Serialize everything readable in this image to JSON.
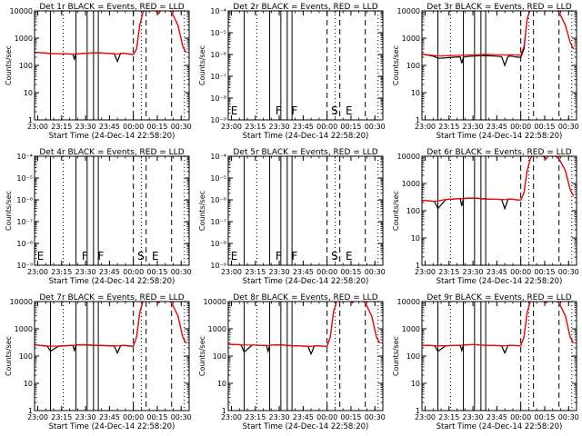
{
  "colors": {
    "events": "#000000",
    "lld": "#ff0000",
    "background": "#ffffff"
  },
  "common": {
    "xlabel": "Start Time (24-Dec-14 22:58:20)",
    "ylabel": "Counts/sec",
    "xticks": [
      "23:00",
      "23:15",
      "23:30",
      "23:45",
      "00:00",
      "00:15",
      "00:30"
    ],
    "xticks_minutes": [
      2,
      17,
      32,
      47,
      62,
      77,
      92
    ],
    "x_range_minutes": [
      0,
      97
    ],
    "x_unit": "minutes after 24-Dec-14 22:58:20",
    "solid_marker_lines_minutes": [
      10,
      26,
      33,
      37,
      40
    ],
    "dashed_marker_lines_minutes": [
      62,
      70,
      86
    ],
    "dotted_marker_lines_minutes": [
      18,
      67,
      94
    ],
    "flag_labels": [
      {
        "text": "E",
        "x": 1
      },
      {
        "text": "F",
        "x": 29
      },
      {
        "text": "F",
        "x": 39
      },
      {
        "text": "S",
        "x": 64
      },
      {
        "text": "E",
        "x": 73
      }
    ]
  },
  "chart_data": [
    {
      "type": "line",
      "panel": "Det 1r",
      "title": "Det 1r BLACK = Events, RED = LLD",
      "scale": "log",
      "ylim": [
        1,
        10000
      ],
      "yticks": [
        1,
        10,
        100,
        1000,
        10000
      ],
      "yticklabels": [
        "1",
        "10",
        "100",
        "1000",
        "10000"
      ],
      "flags_visible": false,
      "x": [
        0,
        5,
        8,
        10,
        15,
        20,
        24,
        25,
        26,
        28,
        33,
        36,
        40,
        45,
        50,
        52,
        54,
        56,
        58,
        60,
        62,
        64,
        66,
        68,
        70,
        74,
        76,
        78,
        80,
        82,
        84,
        86,
        90,
        93,
        95
      ],
      "series": [
        {
          "name": "Events",
          "color": "#000000",
          "values": [
            300,
            290,
            280,
            275,
            270,
            265,
            260,
            170,
            265,
            270,
            280,
            285,
            290,
            280,
            270,
            140,
            275,
            280,
            270,
            260,
            250,
            400,
            3000,
            9000,
            13000,
            12000,
            10000,
            8000,
            13000,
            12000,
            11000,
            9000,
            3000,
            500,
            300
          ]
        },
        {
          "name": "LLD",
          "color": "#ff0000",
          "values": [
            300,
            290,
            280,
            270,
            270,
            265,
            260,
            260,
            265,
            270,
            280,
            285,
            290,
            280,
            270,
            260,
            275,
            280,
            270,
            260,
            250,
            400,
            3000,
            9000,
            13000,
            12000,
            10000,
            8000,
            13000,
            12000,
            11000,
            9000,
            3000,
            500,
            300
          ]
        }
      ]
    },
    {
      "type": "line",
      "panel": "Det 2r",
      "title": "Det 2r BLACK = Events, RED = LLD",
      "scale": "log",
      "ylim": [
        1e-09,
        0.0001
      ],
      "yticks": [
        1e-09,
        1e-08,
        1e-07,
        1e-06,
        1e-05,
        0.0001
      ],
      "yticklabels": [
        "10⁻⁹",
        "10⁻⁸",
        "10⁻⁷",
        "10⁻⁶",
        "10⁻⁵",
        "10⁻⁴"
      ],
      "flags_visible": true,
      "x": [],
      "series": []
    },
    {
      "type": "line",
      "panel": "Det 3r",
      "title": "Det 3r BLACK = Events, RED = LLD",
      "scale": "log",
      "ylim": [
        1,
        10000
      ],
      "yticks": [
        1,
        10,
        100,
        1000,
        10000
      ],
      "yticklabels": [
        "1",
        "10",
        "100",
        "1000",
        "10000"
      ],
      "flags_visible": false,
      "x": [
        0,
        5,
        8,
        10,
        15,
        20,
        24,
        25,
        26,
        28,
        33,
        36,
        40,
        45,
        50,
        52,
        54,
        56,
        58,
        60,
        62,
        64,
        66,
        68,
        70,
        74,
        76,
        78,
        80,
        82,
        84,
        86,
        90,
        93,
        95
      ],
      "series": [
        {
          "name": "Events",
          "color": "#000000",
          "values": [
            260,
            230,
            210,
            180,
            190,
            200,
            205,
            120,
            200,
            210,
            220,
            225,
            230,
            220,
            210,
            100,
            215,
            220,
            210,
            200,
            200,
            400,
            5000,
            12000,
            14000,
            13000,
            12000,
            10000,
            13000,
            12000,
            11000,
            9000,
            3000,
            700,
            400
          ]
        },
        {
          "name": "LLD",
          "color": "#ff0000",
          "values": [
            260,
            240,
            230,
            220,
            225,
            230,
            235,
            235,
            235,
            240,
            245,
            250,
            255,
            250,
            245,
            240,
            245,
            250,
            245,
            240,
            240,
            500,
            5000,
            12000,
            14000,
            13000,
            12000,
            10000,
            13000,
            12000,
            11000,
            9000,
            3000,
            700,
            400
          ]
        }
      ]
    },
    {
      "type": "line",
      "panel": "Det 4r",
      "title": "Det 4r BLACK = Events, RED = LLD",
      "scale": "log",
      "ylim": [
        1e-09,
        0.0001
      ],
      "yticks": [
        1e-09,
        1e-08,
        1e-07,
        1e-06,
        1e-05,
        0.0001
      ],
      "yticklabels": [
        "10⁻⁹",
        "10⁻⁸",
        "10⁻⁷",
        "10⁻⁶",
        "10⁻⁵",
        "10⁻⁴"
      ],
      "flags_visible": true,
      "x": [],
      "series": []
    },
    {
      "type": "line",
      "panel": "Det 5r",
      "title": "Det 5r BLACK = Events, RED = LLD",
      "scale": "log",
      "ylim": [
        1e-09,
        0.0001
      ],
      "yticks": [
        1e-09,
        1e-08,
        1e-07,
        1e-06,
        1e-05,
        0.0001
      ],
      "yticklabels": [
        "10⁻⁹",
        "10⁻⁸",
        "10⁻⁷",
        "10⁻⁶",
        "10⁻⁵",
        "10⁻⁴"
      ],
      "flags_visible": true,
      "x": [],
      "series": []
    },
    {
      "type": "line",
      "panel": "Det 6r",
      "title": "Det 6r BLACK = Events, RED = LLD",
      "scale": "log",
      "ylim": [
        1,
        10000
      ],
      "yticks": [
        1,
        10,
        100,
        1000,
        10000
      ],
      "yticklabels": [
        "1",
        "10",
        "100",
        "1000",
        "10000"
      ],
      "flags_visible": false,
      "x": [
        0,
        5,
        8,
        10,
        15,
        20,
        24,
        25,
        26,
        28,
        33,
        36,
        40,
        45,
        50,
        52,
        54,
        56,
        58,
        60,
        62,
        64,
        66,
        68,
        70,
        74,
        76,
        78,
        80,
        82,
        84,
        86,
        90,
        93,
        95
      ],
      "series": [
        {
          "name": "Events",
          "color": "#000000",
          "values": [
            240,
            230,
            215,
            120,
            260,
            270,
            280,
            150,
            280,
            285,
            290,
            280,
            270,
            265,
            260,
            120,
            265,
            270,
            260,
            250,
            250,
            450,
            3000,
            8000,
            12000,
            11000,
            10000,
            8000,
            12000,
            11000,
            10000,
            8000,
            3000,
            600,
            350
          ]
        },
        {
          "name": "LLD",
          "color": "#ff0000",
          "values": [
            240,
            230,
            220,
            230,
            260,
            270,
            280,
            280,
            285,
            290,
            295,
            285,
            275,
            265,
            260,
            255,
            265,
            270,
            260,
            250,
            250,
            450,
            3000,
            8000,
            12000,
            11000,
            10000,
            8000,
            12000,
            11000,
            10000,
            8000,
            3000,
            600,
            350
          ]
        }
      ]
    },
    {
      "type": "line",
      "panel": "Det 7r",
      "title": "Det 7r BLACK = Events, RED = LLD",
      "scale": "log",
      "ylim": [
        1,
        10000
      ],
      "yticks": [
        1,
        10,
        100,
        1000,
        10000
      ],
      "yticklabels": [
        "1",
        "10",
        "100",
        "1000",
        "10000"
      ],
      "flags_visible": false,
      "x": [
        0,
        5,
        8,
        10,
        15,
        20,
        24,
        25,
        26,
        28,
        33,
        36,
        40,
        45,
        50,
        52,
        54,
        56,
        58,
        60,
        62,
        64,
        66,
        68,
        70,
        74,
        76,
        78,
        80,
        82,
        84,
        86,
        90,
        93,
        95
      ],
      "series": [
        {
          "name": "Events",
          "color": "#000000",
          "values": [
            260,
            240,
            230,
            150,
            230,
            240,
            250,
            160,
            250,
            255,
            260,
            250,
            245,
            240,
            235,
            130,
            240,
            245,
            240,
            230,
            230,
            500,
            4000,
            10000,
            13000,
            12000,
            11000,
            9000,
            13000,
            12000,
            11000,
            9000,
            3000,
            500,
            300
          ]
        },
        {
          "name": "LLD",
          "color": "#ff0000",
          "values": [
            260,
            245,
            235,
            230,
            235,
            245,
            250,
            250,
            255,
            260,
            265,
            255,
            250,
            245,
            240,
            235,
            245,
            250,
            245,
            235,
            235,
            500,
            4000,
            10000,
            13000,
            12000,
            11000,
            9000,
            13000,
            12000,
            11000,
            9000,
            3000,
            500,
            300
          ]
        }
      ]
    },
    {
      "type": "line",
      "panel": "Det 8r",
      "title": "Det 8r BLACK = Events, RED = LLD",
      "scale": "log",
      "ylim": [
        1,
        10000
      ],
      "yticks": [
        1,
        10,
        100,
        1000,
        10000
      ],
      "yticklabels": [
        "1",
        "10",
        "100",
        "1000",
        "10000"
      ],
      "flags_visible": false,
      "x": [
        0,
        5,
        8,
        10,
        15,
        20,
        24,
        25,
        26,
        28,
        33,
        36,
        40,
        45,
        50,
        52,
        54,
        56,
        58,
        60,
        62,
        64,
        66,
        68,
        70,
        74,
        76,
        78,
        80,
        82,
        84,
        86,
        90,
        93,
        95
      ],
      "series": [
        {
          "name": "Events",
          "color": "#000000",
          "values": [
            270,
            265,
            260,
            140,
            255,
            250,
            245,
            150,
            250,
            255,
            260,
            250,
            240,
            235,
            230,
            120,
            235,
            240,
            235,
            230,
            230,
            500,
            4000,
            10000,
            13000,
            12000,
            11000,
            9000,
            13000,
            12000,
            11000,
            9000,
            3000,
            500,
            300
          ]
        },
        {
          "name": "LLD",
          "color": "#ff0000",
          "values": [
            270,
            265,
            260,
            255,
            255,
            250,
            245,
            245,
            250,
            255,
            260,
            250,
            240,
            235,
            230,
            225,
            235,
            240,
            235,
            230,
            230,
            500,
            4000,
            10000,
            13000,
            12000,
            11000,
            9000,
            13000,
            12000,
            11000,
            9000,
            3000,
            500,
            300
          ]
        }
      ]
    },
    {
      "type": "line",
      "panel": "Det 9r",
      "title": "Det 9r BLACK = Events, RED = LLD",
      "scale": "log",
      "ylim": [
        1,
        10000
      ],
      "yticks": [
        1,
        10,
        100,
        1000,
        10000
      ],
      "yticklabels": [
        "1",
        "10",
        "100",
        "1000",
        "10000"
      ],
      "flags_visible": false,
      "x": [
        0,
        5,
        8,
        10,
        15,
        20,
        24,
        25,
        26,
        28,
        33,
        36,
        40,
        45,
        50,
        52,
        54,
        56,
        58,
        60,
        62,
        64,
        66,
        68,
        70,
        74,
        76,
        78,
        80,
        82,
        84,
        86,
        90,
        93,
        95
      ],
      "series": [
        {
          "name": "Events",
          "color": "#000000",
          "values": [
            250,
            245,
            240,
            150,
            240,
            245,
            250,
            160,
            255,
            260,
            265,
            255,
            250,
            245,
            240,
            130,
            245,
            250,
            245,
            240,
            240,
            500,
            4000,
            10000,
            13000,
            12000,
            11000,
            9000,
            13000,
            12000,
            11000,
            9000,
            3000,
            500,
            300
          ]
        },
        {
          "name": "LLD",
          "color": "#ff0000",
          "values": [
            250,
            245,
            240,
            240,
            240,
            245,
            250,
            250,
            255,
            260,
            265,
            255,
            250,
            245,
            240,
            240,
            245,
            250,
            245,
            240,
            240,
            500,
            4000,
            10000,
            13000,
            12000,
            11000,
            9000,
            13000,
            12000,
            11000,
            9000,
            3000,
            500,
            300
          ]
        }
      ]
    }
  ]
}
